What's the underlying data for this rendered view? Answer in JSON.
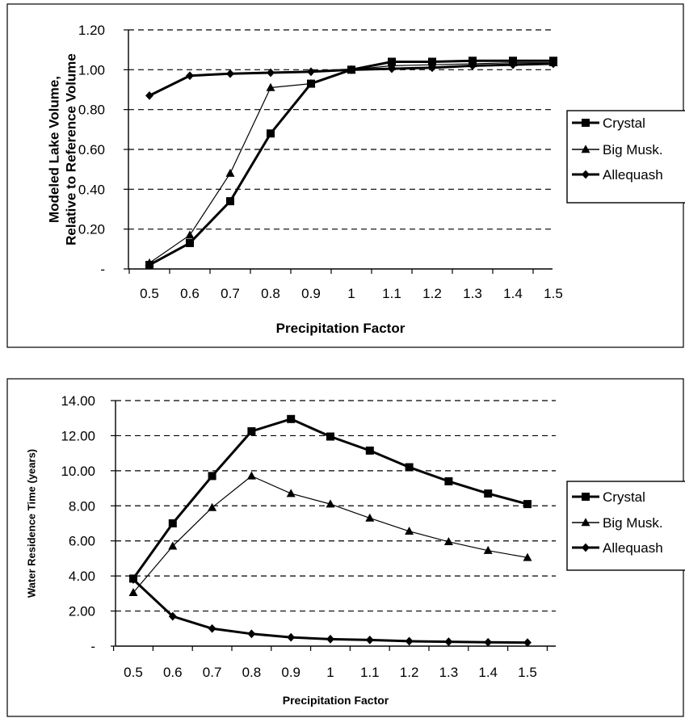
{
  "chart_data": [
    {
      "type": "line",
      "ylabel": [
        "Modeled Lake Volume,",
        "Relative to Reference Volume"
      ],
      "xlabel": "Precipitation Factor",
      "x": [
        "0.5",
        "0.6",
        "0.7",
        "0.8",
        "0.9",
        "1",
        "1.1",
        "1.2",
        "1.3",
        "1.4",
        "1.5"
      ],
      "ylim": [
        0,
        1.2
      ],
      "yticks": [
        "-",
        "0.20",
        "0.40",
        "0.60",
        "0.80",
        "1.00",
        "1.20"
      ],
      "grid": "horizontal dashed",
      "legend_position": "right",
      "series": [
        {
          "name": "Crystal",
          "marker": "square",
          "line": "thick",
          "values": [
            0.02,
            0.13,
            0.34,
            0.68,
            0.93,
            1.0,
            1.04,
            1.04,
            1.045,
            1.045,
            1.045
          ]
        },
        {
          "name": "Big Musk.",
          "marker": "triangle",
          "line": "thin",
          "values": [
            0.03,
            0.17,
            0.48,
            0.91,
            0.93,
            1.0,
            1.02,
            1.025,
            1.03,
            1.035,
            1.035
          ]
        },
        {
          "name": "Allequash",
          "marker": "diamond",
          "line": "thick",
          "values": [
            0.87,
            0.97,
            0.98,
            0.985,
            0.99,
            1.0,
            1.005,
            1.01,
            1.02,
            1.025,
            1.03
          ]
        }
      ]
    },
    {
      "type": "line",
      "ylabel": [
        "Water Residence Time (years)"
      ],
      "xlabel": "Precipitation Factor",
      "x": [
        "0.5",
        "0.6",
        "0.7",
        "0.8",
        "0.9",
        "1",
        "1.1",
        "1.2",
        "1.3",
        "1.4",
        "1.5"
      ],
      "ylim": [
        0,
        14
      ],
      "yticks": [
        "-",
        "2.00",
        "4.00",
        "6.00",
        "8.00",
        "10.00",
        "12.00",
        "14.00"
      ],
      "grid": "horizontal dashed",
      "legend_position": "right",
      "series": [
        {
          "name": "Crystal",
          "marker": "square",
          "line": "thick",
          "values": [
            3.85,
            7.0,
            9.7,
            12.25,
            12.95,
            11.95,
            11.15,
            10.2,
            9.4,
            8.7,
            8.1
          ]
        },
        {
          "name": "Big Musk.",
          "marker": "triangle",
          "line": "thin",
          "values": [
            3.05,
            5.7,
            7.9,
            9.7,
            8.7,
            8.1,
            7.3,
            6.55,
            5.95,
            5.45,
            5.05
          ]
        },
        {
          "name": "Allequash",
          "marker": "diamond",
          "line": "thick",
          "values": [
            3.8,
            1.7,
            1.0,
            0.7,
            0.5,
            0.4,
            0.35,
            0.28,
            0.25,
            0.22,
            0.2
          ]
        }
      ]
    }
  ]
}
